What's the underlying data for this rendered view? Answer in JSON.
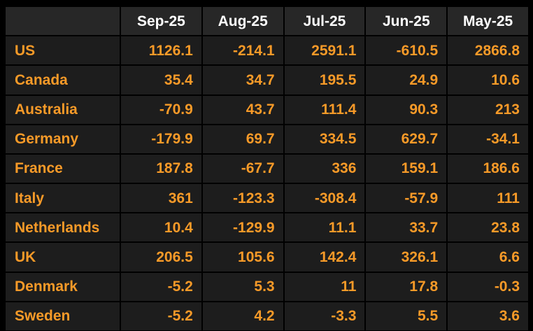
{
  "theme": {
    "page_background": "#000000",
    "grid_line_color": "#000000",
    "cell_background": "#1d1d1d",
    "header_background": "#272727",
    "header_text_color": "#ffffff",
    "value_text_color": "#f79a28"
  },
  "table": {
    "corner_label": "",
    "columns": [
      "Sep-25",
      "Aug-25",
      "Jul-25",
      "Jun-25",
      "May-25"
    ],
    "rows": [
      {
        "label": "US",
        "values": [
          "1126.1",
          "-214.1",
          "2591.1",
          "-610.5",
          "2866.8"
        ]
      },
      {
        "label": "Canada",
        "values": [
          "35.4",
          "34.7",
          "195.5",
          "24.9",
          "10.6"
        ]
      },
      {
        "label": "Australia",
        "values": [
          "-70.9",
          "43.7",
          "111.4",
          "90.3",
          "213"
        ]
      },
      {
        "label": "Germany",
        "values": [
          "-179.9",
          "69.7",
          "334.5",
          "629.7",
          "-34.1"
        ]
      },
      {
        "label": "France",
        "values": [
          "187.8",
          "-67.7",
          "336",
          "159.1",
          "186.6"
        ]
      },
      {
        "label": "Italy",
        "values": [
          "361",
          "-123.3",
          "-308.4",
          "-57.9",
          "111"
        ]
      },
      {
        "label": "Netherlands",
        "values": [
          "10.4",
          "-129.9",
          "11.1",
          "33.7",
          "23.8"
        ]
      },
      {
        "label": "UK",
        "values": [
          "206.5",
          "105.6",
          "142.4",
          "326.1",
          "6.6"
        ]
      },
      {
        "label": "Denmark",
        "values": [
          "-5.2",
          "5.3",
          "11",
          "17.8",
          "-0.3"
        ]
      },
      {
        "label": "Sweden",
        "values": [
          "-5.2",
          "4.2",
          "-3.3",
          "5.5",
          "3.6"
        ]
      }
    ]
  },
  "chart_data": {
    "type": "table",
    "title": "",
    "categories": [
      "Sep-25",
      "Aug-25",
      "Jul-25",
      "Jun-25",
      "May-25"
    ],
    "series": [
      {
        "name": "US",
        "values": [
          1126.1,
          -214.1,
          2591.1,
          -610.5,
          2866.8
        ]
      },
      {
        "name": "Canada",
        "values": [
          35.4,
          34.7,
          195.5,
          24.9,
          10.6
        ]
      },
      {
        "name": "Australia",
        "values": [
          -70.9,
          43.7,
          111.4,
          90.3,
          213
        ]
      },
      {
        "name": "Germany",
        "values": [
          -179.9,
          69.7,
          334.5,
          629.7,
          -34.1
        ]
      },
      {
        "name": "France",
        "values": [
          187.8,
          -67.7,
          336,
          159.1,
          186.6
        ]
      },
      {
        "name": "Italy",
        "values": [
          361,
          -123.3,
          -308.4,
          -57.9,
          111
        ]
      },
      {
        "name": "Netherlands",
        "values": [
          10.4,
          -129.9,
          11.1,
          33.7,
          23.8
        ]
      },
      {
        "name": "UK",
        "values": [
          206.5,
          105.6,
          142.4,
          326.1,
          6.6
        ]
      },
      {
        "name": "Denmark",
        "values": [
          -5.2,
          5.3,
          11,
          17.8,
          -0.3
        ]
      },
      {
        "name": "Sweden",
        "values": [
          -5.2,
          4.2,
          -3.3,
          5.5,
          3.6
        ]
      }
    ]
  }
}
